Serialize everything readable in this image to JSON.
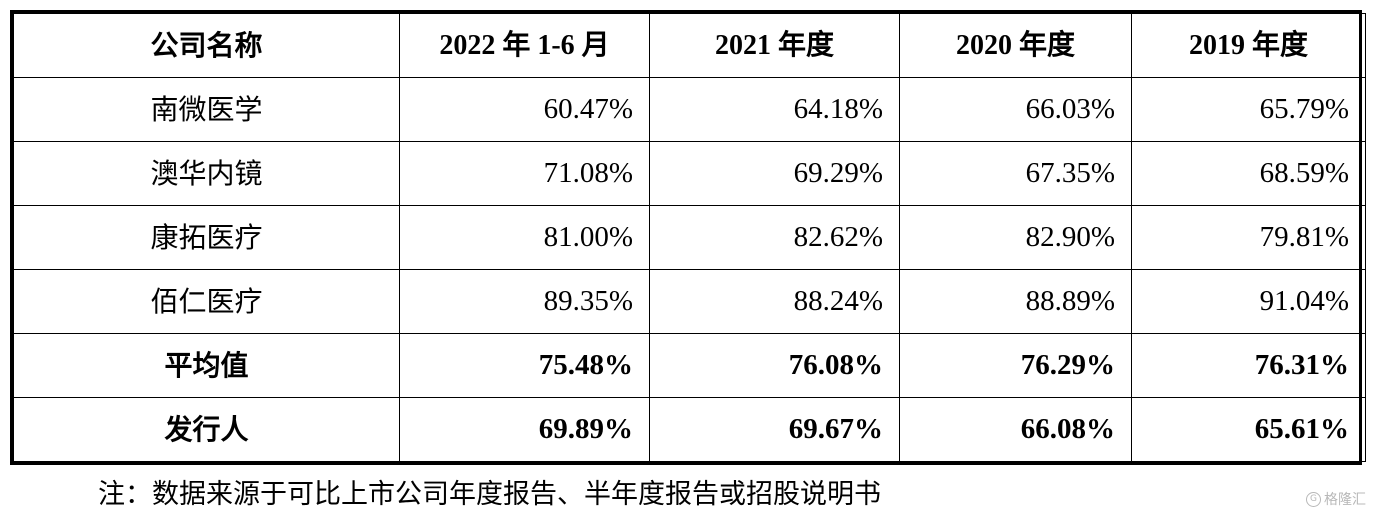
{
  "table": {
    "headers": [
      "公司名称",
      "2022 年 1-6 月",
      "2021 年度",
      "2020 年度",
      "2019 年度"
    ],
    "rows": [
      {
        "name": "南微医学",
        "values": [
          "60.47%",
          "64.18%",
          "66.03%",
          "65.79%"
        ],
        "bold": false
      },
      {
        "name": "澳华内镜",
        "values": [
          "71.08%",
          "69.29%",
          "67.35%",
          "68.59%"
        ],
        "bold": false
      },
      {
        "name": "康拓医疗",
        "values": [
          "81.00%",
          "82.62%",
          "82.90%",
          "79.81%"
        ],
        "bold": false
      },
      {
        "name": "佰仁医疗",
        "values": [
          "89.35%",
          "88.24%",
          "88.89%",
          "91.04%"
        ],
        "bold": false
      },
      {
        "name": "平均值",
        "values": [
          "75.48%",
          "76.08%",
          "76.29%",
          "76.31%"
        ],
        "bold": true
      },
      {
        "name": "发行人",
        "values": [
          "69.89%",
          "69.67%",
          "66.08%",
          "65.61%"
        ],
        "bold": true
      }
    ]
  },
  "note": "注：数据来源于可比上市公司年度报告、半年度报告或招股说明书",
  "watermark": {
    "logo": "G",
    "text": "格隆汇"
  }
}
